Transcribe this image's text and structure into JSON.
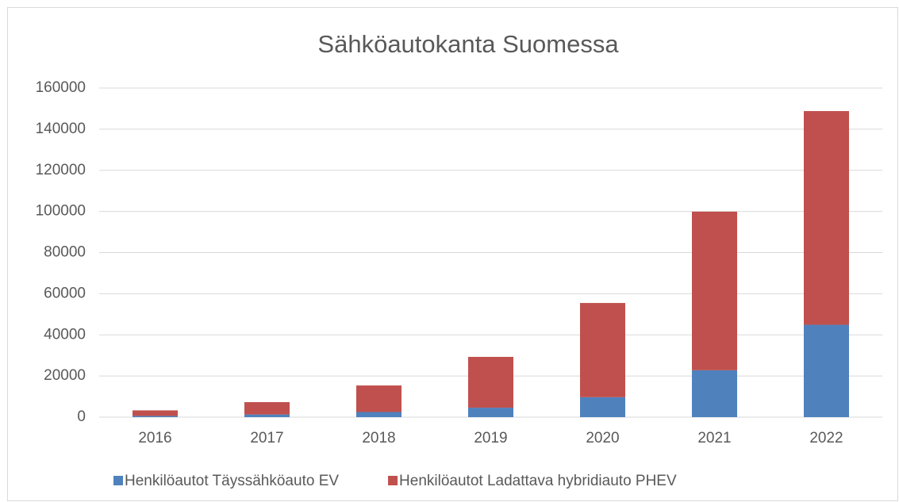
{
  "chart_data": {
    "type": "stacked_bar",
    "title": "Sähköautokanta Suomessa",
    "categories": [
      "2016",
      "2017",
      "2018",
      "2019",
      "2020",
      "2021",
      "2022"
    ],
    "series": [
      {
        "name": "Henkilöautot Täyssähköauto EV",
        "color": "#4f81bd",
        "values": [
          600,
          1300,
          2500,
          4600,
          9700,
          22800,
          44900
        ]
      },
      {
        "name": "Henkilöautot Ladattava hybridiauto PHEV",
        "color": "#c0504d",
        "values": [
          2700,
          6000,
          12900,
          24700,
          45800,
          77100,
          103900
        ]
      }
    ],
    "ylim": [
      0,
      160000
    ],
    "yticks": [
      0,
      20000,
      40000,
      60000,
      80000,
      100000,
      120000,
      140000,
      160000
    ],
    "grid": true,
    "legend": "bottom"
  }
}
